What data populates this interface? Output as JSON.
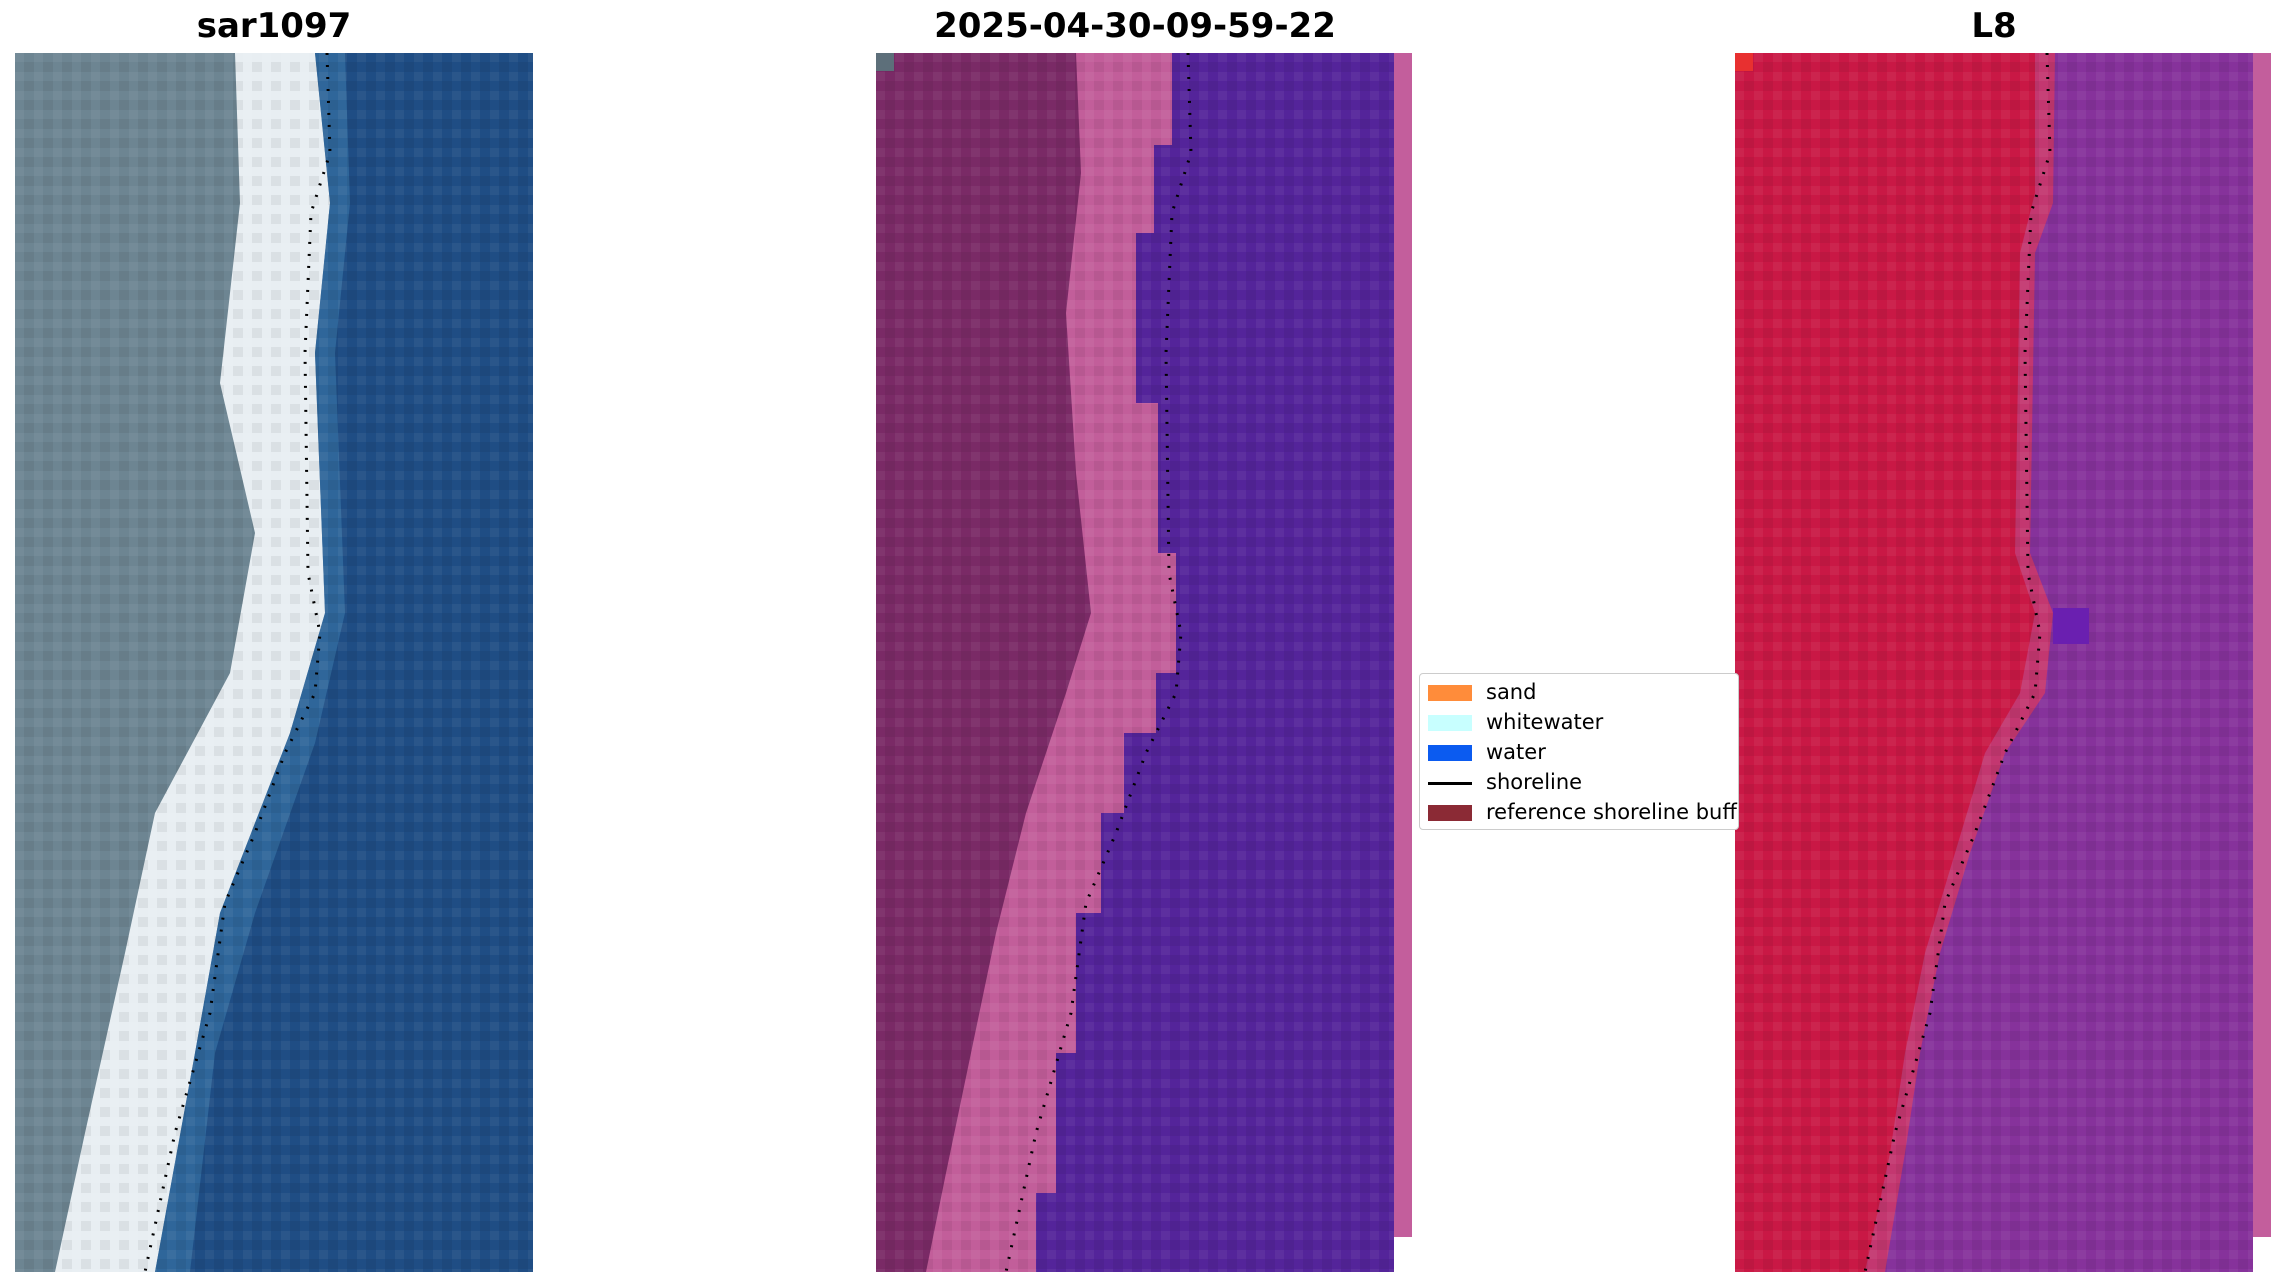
{
  "panels": [
    {
      "title": "sar1097",
      "kind": "rgb"
    },
    {
      "title": "2025-04-30-09-59-22",
      "kind": "classified"
    },
    {
      "title": "L8",
      "kind": "index"
    }
  ],
  "legend": {
    "items": [
      {
        "label": "sand",
        "color": "#ff8c3a"
      },
      {
        "label": "whitewater",
        "color": "#c8ffff"
      },
      {
        "label": "water",
        "color": "#0b5bf0"
      },
      {
        "label": "shoreline",
        "color": "#000000"
      },
      {
        "label": "reference shoreline buffer",
        "color": "#8b2a35"
      }
    ]
  },
  "colors": {
    "rgb_land": "#6d8592",
    "rgb_beach": "#e8eef2",
    "rgb_water": "#1f4d84",
    "classified_land": "#7a2a66",
    "classified_beach": "#c25e9a",
    "classified_water": "#54249a",
    "index_land": "#c91845",
    "index_beach": "#c33770",
    "index_water": "#86329b",
    "buffer_edge": "#c35e9c"
  }
}
